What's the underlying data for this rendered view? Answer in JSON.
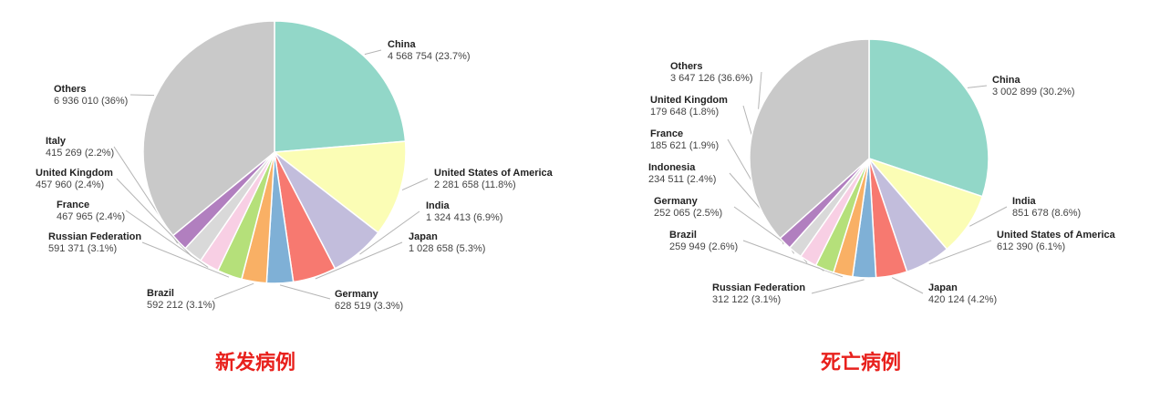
{
  "chart_data": [
    {
      "type": "pie",
      "title": "新发病例",
      "value_format": "space-thousands-with-percent",
      "slices": [
        {
          "name": "China",
          "value": 4568754,
          "percent": 23.7,
          "value_text": "4 568 754 (23.7%)",
          "color": "#92d7c8"
        },
        {
          "name": "United States of America",
          "value": 2281658,
          "percent": 11.8,
          "value_text": "2 281 658 (11.8%)",
          "color": "#fbfdb5"
        },
        {
          "name": "India",
          "value": 1324413,
          "percent": 6.9,
          "value_text": "1 324 413 (6.9%)",
          "color": "#c2bddc"
        },
        {
          "name": "Japan",
          "value": 1028658,
          "percent": 5.3,
          "value_text": "1 028 658 (5.3%)",
          "color": "#f77970"
        },
        {
          "name": "Germany",
          "value": 628519,
          "percent": 3.3,
          "value_text": "628 519 (3.3%)",
          "color": "#7fb0d6"
        },
        {
          "name": "Brazil",
          "value": 592212,
          "percent": 3.1,
          "value_text": "592 212 (3.1%)",
          "color": "#f9b065"
        },
        {
          "name": "Russian Federation",
          "value": 591371,
          "percent": 3.1,
          "value_text": "591 371 (3.1%)",
          "color": "#b5e07a"
        },
        {
          "name": "France",
          "value": 467965,
          "percent": 2.4,
          "value_text": "467 965 (2.4%)",
          "color": "#f8cfe4"
        },
        {
          "name": "United Kingdom",
          "value": 457960,
          "percent": 2.4,
          "value_text": "457 960 (2.4%)",
          "color": "#d9d9d9"
        },
        {
          "name": "Italy",
          "value": 415269,
          "percent": 2.2,
          "value_text": "415 269 (2.2%)",
          "color": "#b17fbf"
        },
        {
          "name": "Others",
          "value": 6936010,
          "percent": 36,
          "value_text": "6 936 010 (36%)",
          "color": "#c9c9c9"
        }
      ]
    },
    {
      "type": "pie",
      "title": "死亡病例",
      "slices": [
        {
          "name": "China",
          "value": 3002899,
          "percent": 30.2,
          "value_text": "3 002 899 (30.2%)",
          "color": "#92d7c8"
        },
        {
          "name": "India",
          "value": 851678,
          "percent": 8.6,
          "value_text": "851 678 (8.6%)",
          "color": "#fbfdb5"
        },
        {
          "name": "United States of America",
          "value": 612390,
          "percent": 6.1,
          "value_text": "612 390 (6.1%)",
          "color": "#c2bddc"
        },
        {
          "name": "Japan",
          "value": 420124,
          "percent": 4.2,
          "value_text": "420 124 (4.2%)",
          "color": "#f77970"
        },
        {
          "name": "Russian Federation",
          "value": 312122,
          "percent": 3.1,
          "value_text": "312 122 (3.1%)",
          "color": "#7fb0d6"
        },
        {
          "name": "Brazil",
          "value": 259949,
          "percent": 2.6,
          "value_text": "259 949 (2.6%)",
          "color": "#f9b065"
        },
        {
          "name": "Germany",
          "value": 252065,
          "percent": 2.5,
          "value_text": "252 065 (2.5%)",
          "color": "#b5e07a"
        },
        {
          "name": "Indonesia",
          "value": 234511,
          "percent": 2.4,
          "value_text": "234 511 (2.4%)",
          "color": "#f8cfe4"
        },
        {
          "name": "France",
          "value": 185621,
          "percent": 1.9,
          "value_text": "185 621 (1.9%)",
          "color": "#d9d9d9"
        },
        {
          "name": "United Kingdom",
          "value": 179648,
          "percent": 1.8,
          "value_text": "179 648 (1.8%)",
          "color": "#b17fbf"
        },
        {
          "name": "Others",
          "value": 3647126,
          "percent": 36.6,
          "value_text": "3 647 126 (36.6%)",
          "color": "#c9c9c9"
        }
      ]
    }
  ]
}
